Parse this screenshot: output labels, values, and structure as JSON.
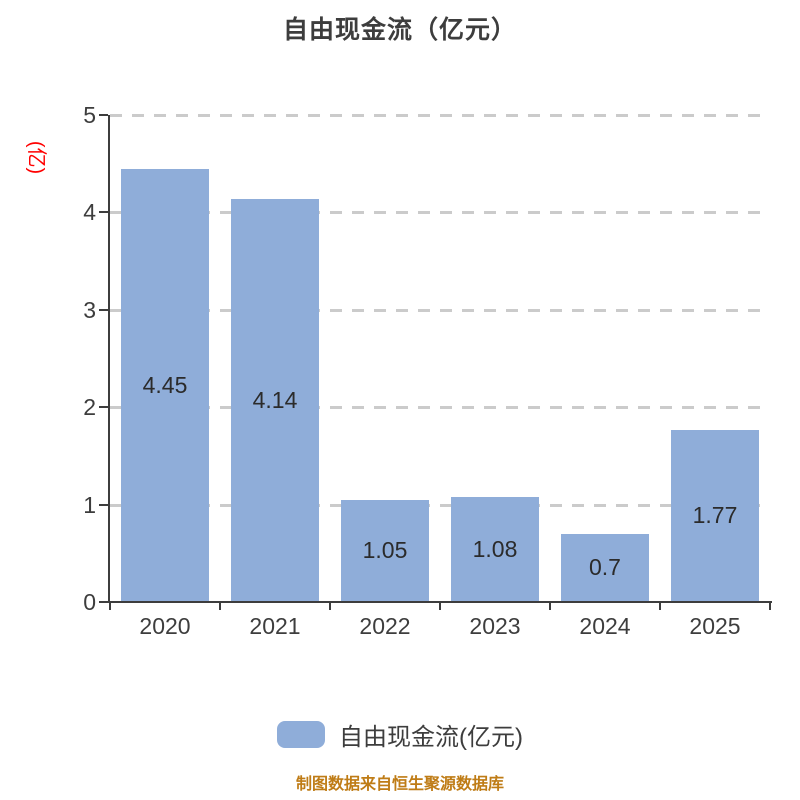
{
  "title": "自由现金流（亿元）",
  "footer_note": "制图数据来自恒生聚源数据库",
  "colors": {
    "bar_fill": "#8fadd9",
    "axis": "#3d3d3d",
    "gridline": "#cbcbcb",
    "title_text": "#3d3d3d",
    "value_text": "#2b2b2b",
    "y_unit_label": "#ff0000",
    "footer_text": "#bf7c16"
  },
  "chart_data": {
    "type": "bar",
    "title": "自由现金流（亿元）",
    "categories": [
      "2020",
      "2021",
      "2022",
      "2023",
      "2024",
      "2025"
    ],
    "values": [
      4.45,
      4.14,
      1.05,
      1.08,
      0.7,
      1.77
    ],
    "value_labels": [
      "4.45",
      "4.14",
      "1.05",
      "1.08",
      "0.7",
      "1.77"
    ],
    "xlabel": "",
    "ylabel": "(亿)",
    "ylim": [
      0,
      5
    ],
    "yticks": [
      0,
      1,
      2,
      3,
      4,
      5
    ],
    "grid": "horizontal-dashed",
    "legend_position": "bottom",
    "legend": [
      {
        "label": "自由现金流(亿元)",
        "color": "#8fadd9"
      }
    ]
  }
}
